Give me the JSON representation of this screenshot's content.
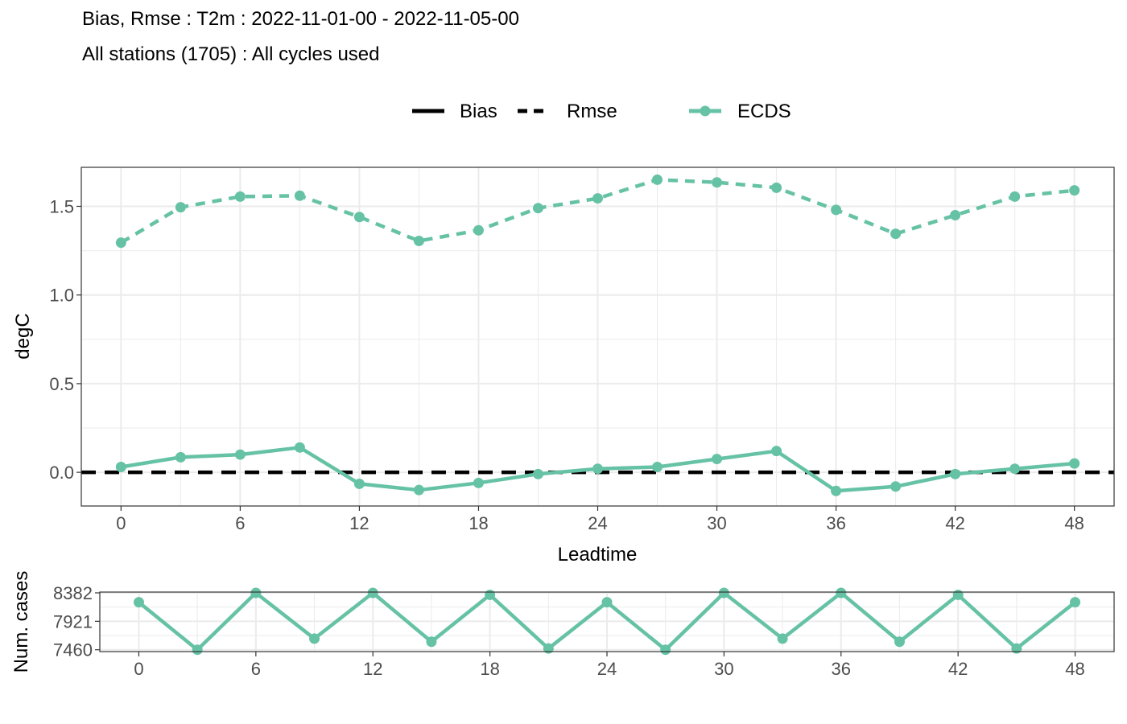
{
  "header": {
    "title": "Bias, Rmse : T2m : 2022-11-01-00 - 2022-11-05-00",
    "subtitle": "All stations (1705) : All cycles used"
  },
  "legend": {
    "bias_label": "Bias",
    "rmse_label": "Rmse",
    "model_label": "ECDS"
  },
  "colors": {
    "series": "#66c2a5",
    "reference": "#000000",
    "grid": "#ebebeb"
  },
  "chart_data": [
    {
      "type": "line",
      "xlabel": "Leadtime",
      "ylabel": "degC",
      "xlim": [
        -2,
        50
      ],
      "ylim": [
        -0.19,
        1.72
      ],
      "xticks": [
        0,
        6,
        12,
        18,
        24,
        30,
        36,
        42,
        48
      ],
      "yticks": [
        0.0,
        0.5,
        1.0,
        1.5
      ],
      "ytick_labels": [
        "0.0",
        "0.5",
        "1.0",
        "1.5"
      ],
      "grid": true,
      "legend_position": "top",
      "x": [
        0,
        3,
        6,
        9,
        12,
        15,
        18,
        21,
        24,
        27,
        30,
        33,
        36,
        39,
        42,
        45,
        48
      ],
      "series": [
        {
          "name": "ECDS",
          "component": "Bias",
          "line_style": "solid",
          "values": [
            0.03,
            0.085,
            0.1,
            0.14,
            -0.065,
            -0.1,
            -0.06,
            -0.01,
            0.02,
            0.03,
            0.075,
            0.12,
            -0.105,
            -0.08,
            -0.01,
            0.02,
            0.05
          ]
        },
        {
          "name": "ECDS",
          "component": "Rmse",
          "line_style": "dashed",
          "values": [
            1.295,
            1.495,
            1.555,
            1.56,
            1.44,
            1.305,
            1.365,
            1.49,
            1.545,
            1.65,
            1.635,
            1.605,
            1.48,
            1.345,
            1.45,
            1.555,
            1.59
          ]
        }
      ],
      "reference_line": {
        "y": 0,
        "line_style": "dashed"
      }
    },
    {
      "type": "line",
      "xlabel": "",
      "ylabel": "Num. cases",
      "xlim": [
        -2,
        50
      ],
      "ylim": [
        7430,
        8395
      ],
      "xticks": [
        0,
        6,
        12,
        18,
        24,
        30,
        36,
        42,
        48
      ],
      "yticks": [
        7460,
        7921,
        8382
      ],
      "ytick_labels": [
        "7460",
        "7921",
        "8382"
      ],
      "grid": true,
      "x": [
        0,
        3,
        6,
        9,
        12,
        15,
        18,
        21,
        24,
        27,
        30,
        33,
        36,
        39,
        42,
        45,
        48
      ],
      "series": [
        {
          "name": "ECDS",
          "values": [
            8230,
            7460,
            8382,
            7640,
            8382,
            7590,
            8350,
            7480,
            8230,
            7460,
            8382,
            7640,
            8382,
            7590,
            8350,
            7480,
            8230
          ]
        }
      ]
    }
  ]
}
